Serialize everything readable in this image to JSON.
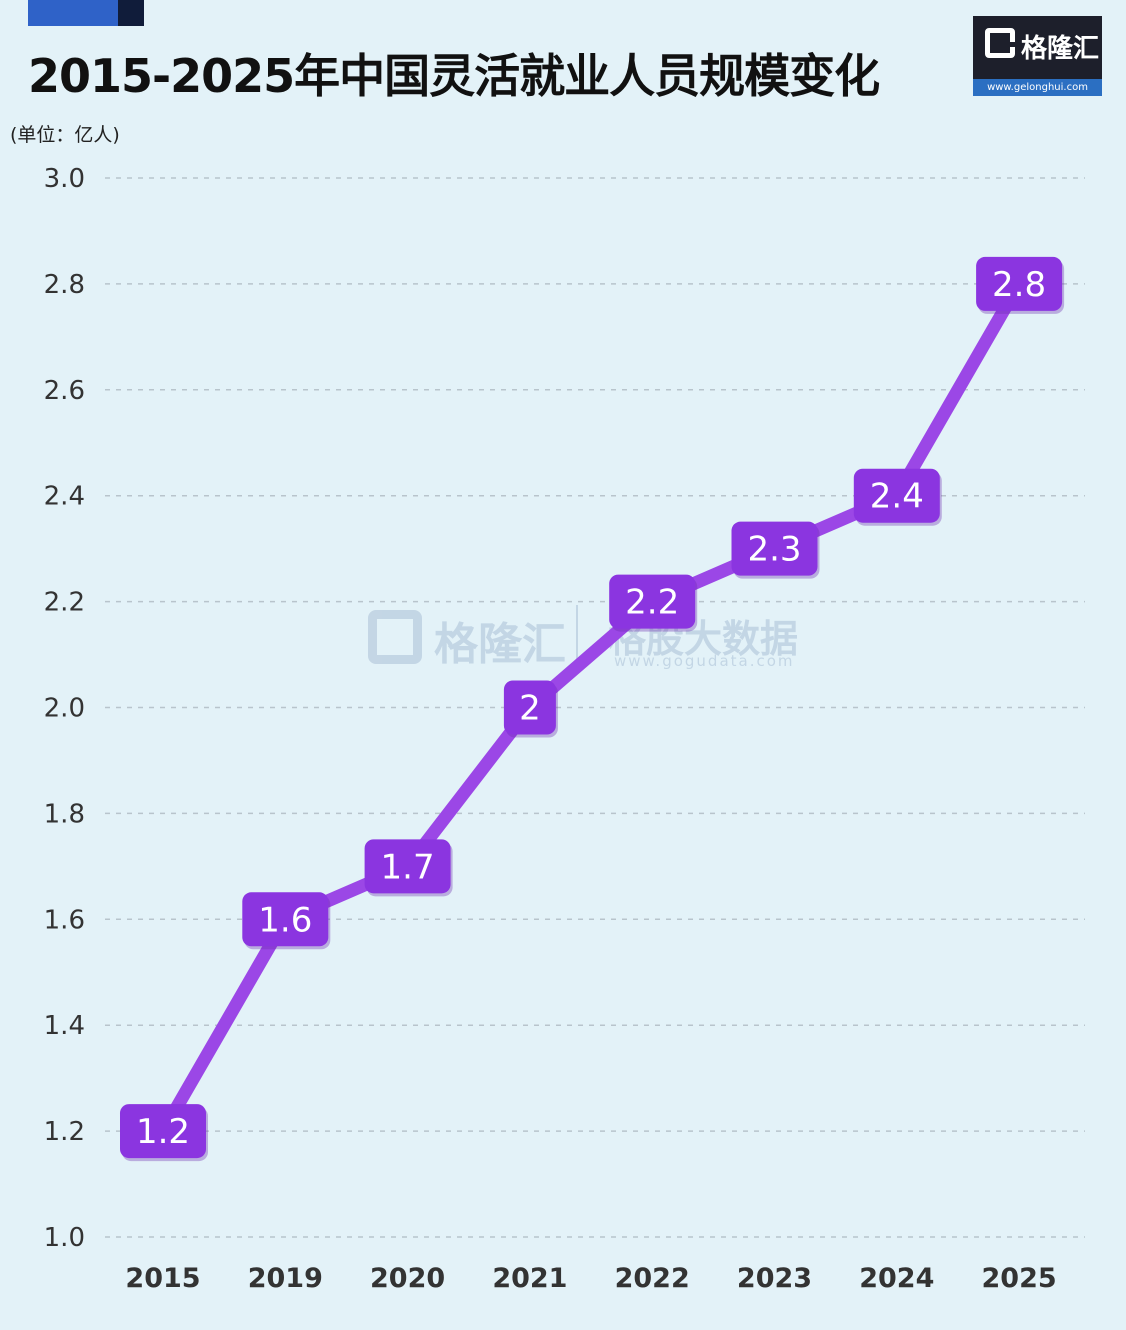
{
  "title": "2015-2025年中国灵活就业人员规模变化",
  "unit_label": "(单位：亿人)",
  "logo": {
    "text": "格隆汇",
    "url": "www.gelonghui.com"
  },
  "watermark": {
    "brand": "格隆汇",
    "name": "格股大数据",
    "url": "www.gogudata.com"
  },
  "colors": {
    "line": "#9b47e6",
    "label_bg": "#8b35e0",
    "grid": "#b8c4cc",
    "background": "#e3f2f8"
  },
  "chart_data": {
    "type": "line",
    "title": "2015-2025年中国灵活就业人员规模变化",
    "ylabel": "(单位：亿人)",
    "xlabel": "",
    "categories": [
      "2015",
      "2019",
      "2020",
      "2021",
      "2022",
      "2023",
      "2024",
      "2025"
    ],
    "values": [
      1.2,
      1.6,
      1.7,
      2,
      2.2,
      2.3,
      2.4,
      2.8
    ],
    "value_labels": [
      "1.2",
      "1.6",
      "1.7",
      "2",
      "2.2",
      "2.3",
      "2.4",
      "2.8"
    ],
    "ylim": [
      1.0,
      3.0
    ],
    "yticks": [
      "1.0",
      "1.2",
      "1.4",
      "1.6",
      "1.8",
      "2.0",
      "2.2",
      "2.4",
      "2.6",
      "2.8",
      "3.0"
    ],
    "grid": true,
    "legend": "none"
  }
}
